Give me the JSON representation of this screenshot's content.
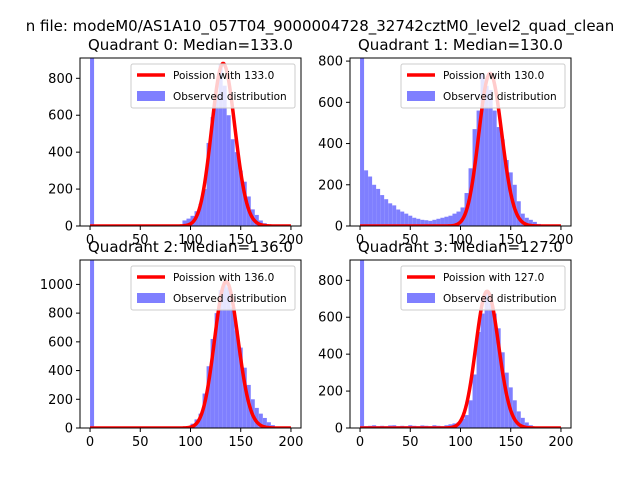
{
  "suptitle": "n file: modeM0/AS1A10_057T04_9000004728_32742cztM0_level2_quad_clean",
  "colors": {
    "poisson": "#ff0000",
    "observed": "#7f7fff"
  },
  "chart_data": [
    {
      "type": "bar",
      "title": "Quadrant 0: Median=133.0",
      "xlim": [
        -10,
        210
      ],
      "ylim": [
        0,
        910
      ],
      "xticks": [
        0,
        50,
        100,
        150,
        200
      ],
      "yticks": [
        0,
        200,
        400,
        600,
        800
      ],
      "bin_width": 4,
      "legend": {
        "loc": "upper right",
        "entries": [
          "Poission with 133.0",
          "Observed distribution"
        ]
      },
      "observed": {
        "name": "Observed distribution",
        "bins": [
          0,
          4,
          8,
          12,
          16,
          20,
          24,
          28,
          32,
          36,
          40,
          44,
          48,
          52,
          56,
          60,
          64,
          68,
          72,
          76,
          80,
          84,
          88,
          92,
          96,
          100,
          104,
          108,
          112,
          116,
          120,
          124,
          128,
          132,
          136,
          140,
          144,
          148,
          152,
          156,
          160,
          164,
          168,
          172,
          176,
          180,
          184,
          188,
          192,
          196,
          200
        ],
        "values": [
          910,
          0,
          0,
          0,
          0,
          0,
          0,
          0,
          0,
          0,
          0,
          0,
          0,
          0,
          0,
          0,
          0,
          0,
          0,
          0,
          0,
          0,
          0,
          30,
          40,
          55,
          80,
          120,
          200,
          450,
          590,
          700,
          880,
          760,
          600,
          470,
          400,
          300,
          240,
          160,
          90,
          60,
          30,
          15,
          8,
          5,
          4,
          2,
          1,
          1,
          1
        ]
      },
      "poisson": {
        "name": "Poission with 133.0",
        "mean": 133.0
      }
    },
    {
      "type": "bar",
      "title": "Quadrant 1: Median=130.0",
      "xlim": [
        -10,
        210
      ],
      "ylim": [
        0,
        815
      ],
      "xticks": [
        0,
        50,
        100,
        150,
        200
      ],
      "yticks": [
        0,
        200,
        400,
        600,
        800
      ],
      "bin_width": 4,
      "legend": {
        "loc": "upper right",
        "entries": [
          "Poission with 130.0",
          "Observed distribution"
        ]
      },
      "observed": {
        "name": "Observed distribution",
        "bins": [
          0,
          4,
          8,
          12,
          16,
          20,
          24,
          28,
          32,
          36,
          40,
          44,
          48,
          52,
          56,
          60,
          64,
          68,
          72,
          76,
          80,
          84,
          88,
          92,
          96,
          100,
          104,
          108,
          112,
          116,
          120,
          124,
          128,
          132,
          136,
          140,
          144,
          148,
          152,
          156,
          160,
          164,
          168,
          172,
          176,
          180,
          184,
          188,
          192,
          196,
          200
        ],
        "values": [
          815,
          270,
          240,
          200,
          180,
          150,
          130,
          110,
          100,
          80,
          70,
          60,
          50,
          40,
          35,
          30,
          28,
          25,
          30,
          35,
          40,
          45,
          50,
          60,
          70,
          90,
          160,
          280,
          470,
          560,
          740,
          680,
          660,
          560,
          480,
          420,
          320,
          260,
          200,
          120,
          60,
          40,
          30,
          20,
          10,
          5,
          3,
          2,
          1,
          0,
          0
        ]
      },
      "poisson": {
        "name": "Poission with 130.0",
        "mean": 130.0
      }
    },
    {
      "type": "bar",
      "title": "Quadrant 2: Median=136.0",
      "xlim": [
        -10,
        210
      ],
      "ylim": [
        0,
        1170
      ],
      "xticks": [
        0,
        50,
        100,
        150,
        200
      ],
      "yticks": [
        0,
        200,
        400,
        600,
        800,
        1000
      ],
      "bin_width": 4,
      "legend": {
        "loc": "upper right",
        "entries": [
          "Poission with 136.0",
          "Observed distribution"
        ]
      },
      "observed": {
        "name": "Observed distribution",
        "bins": [
          0,
          4,
          8,
          12,
          16,
          20,
          24,
          28,
          32,
          36,
          40,
          44,
          48,
          52,
          56,
          60,
          64,
          68,
          72,
          76,
          80,
          84,
          88,
          92,
          96,
          100,
          104,
          108,
          112,
          116,
          120,
          124,
          128,
          132,
          136,
          140,
          144,
          148,
          152,
          156,
          160,
          164,
          168,
          172,
          176,
          180,
          184,
          188,
          192,
          196,
          200
        ],
        "values": [
          1170,
          0,
          0,
          0,
          0,
          0,
          0,
          0,
          0,
          0,
          0,
          0,
          0,
          0,
          0,
          0,
          0,
          0,
          0,
          0,
          0,
          0,
          0,
          0,
          0,
          30,
          60,
          100,
          240,
          430,
          620,
          800,
          960,
          1020,
          980,
          840,
          680,
          560,
          420,
          300,
          200,
          140,
          100,
          70,
          40,
          20,
          10,
          5,
          2,
          1,
          0
        ]
      },
      "poisson": {
        "name": "Poission with 136.0",
        "mean": 136.0
      }
    },
    {
      "type": "bar",
      "title": "Quadrant 3: Median=127.0",
      "xlim": [
        -10,
        210
      ],
      "ylim": [
        0,
        910
      ],
      "xticks": [
        0,
        50,
        100,
        150,
        200
      ],
      "yticks": [
        0,
        200,
        400,
        600,
        800
      ],
      "bin_width": 4,
      "legend": {
        "loc": "upper right",
        "entries": [
          "Poission with 127.0",
          "Observed distribution"
        ]
      },
      "observed": {
        "name": "Observed distribution",
        "bins": [
          0,
          4,
          8,
          12,
          16,
          20,
          24,
          28,
          32,
          36,
          40,
          44,
          48,
          52,
          56,
          60,
          64,
          68,
          72,
          76,
          80,
          84,
          88,
          92,
          96,
          100,
          104,
          108,
          112,
          116,
          120,
          124,
          128,
          132,
          136,
          140,
          144,
          148,
          152,
          156,
          160,
          164,
          168,
          172,
          176,
          180,
          184,
          188,
          192,
          196,
          200
        ],
        "values": [
          910,
          10,
          12,
          15,
          10,
          12,
          10,
          14,
          15,
          10,
          12,
          10,
          15,
          12,
          10,
          14,
          12,
          10,
          15,
          12,
          10,
          15,
          20,
          25,
          30,
          50,
          70,
          150,
          290,
          520,
          620,
          740,
          680,
          620,
          540,
          410,
          300,
          220,
          150,
          90,
          55,
          30,
          15,
          8,
          4,
          2,
          1,
          0,
          0,
          0,
          0
        ]
      },
      "poisson": {
        "name": "Poission with 127.0",
        "mean": 127.0
      }
    }
  ]
}
